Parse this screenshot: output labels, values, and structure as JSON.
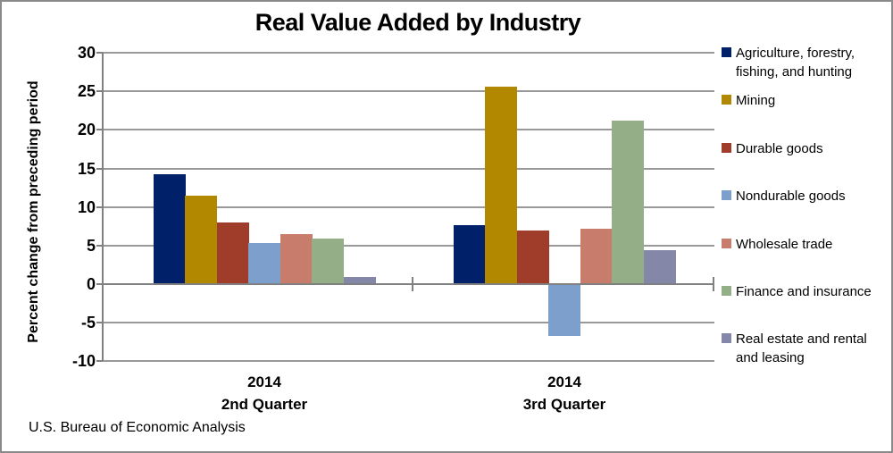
{
  "chart_data": {
    "type": "bar",
    "title": "Real Value Added by Industry",
    "ylabel": "Percent change from preceding period",
    "source_note": "U.S. Bureau of Economic Analysis",
    "categories": [
      [
        "2014",
        "2nd Quarter"
      ],
      [
        "2014",
        "3rd Quarter"
      ]
    ],
    "yticks": [
      30,
      25,
      20,
      15,
      10,
      5,
      0,
      -5,
      -10
    ],
    "ylim": [
      -10,
      30
    ],
    "ytick_interval": 5,
    "grid": true,
    "legend_position": "right",
    "axis_color": "#808080",
    "gridline_color": "#999999",
    "series": [
      {
        "name": "Agriculture, forestry, fishing, and hunting",
        "color": "#002169",
        "values": [
          14.3,
          7.6
        ]
      },
      {
        "name": "Mining",
        "color": "#b28800",
        "values": [
          11.5,
          25.6
        ]
      },
      {
        "name": "Durable goods",
        "color": "#a03d2a",
        "values": [
          8.0,
          7.0
        ]
      },
      {
        "name": "Nondurable goods",
        "color": "#7d9fcc",
        "values": [
          5.3,
          -6.6
        ]
      },
      {
        "name": "Wholesale trade",
        "color": "#c87c6b",
        "values": [
          6.5,
          7.2
        ]
      },
      {
        "name": "Finance and insurance",
        "color": "#94af88",
        "values": [
          5.9,
          21.2
        ]
      },
      {
        "name": "Real estate and rental and leasing",
        "color": "#8487a8",
        "values": [
          0.9,
          4.4
        ]
      }
    ]
  }
}
